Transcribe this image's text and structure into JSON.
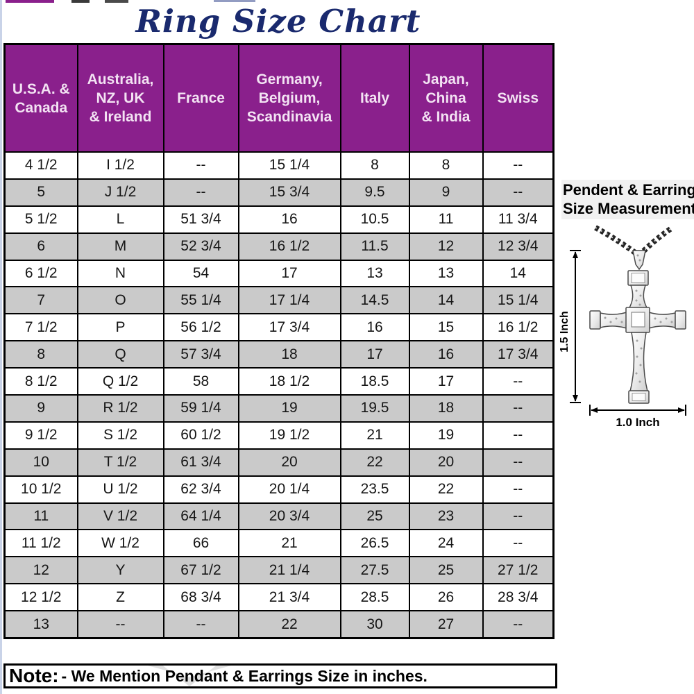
{
  "title": "Ring Size Chart",
  "table": {
    "headers": [
      {
        "lines": [
          "U.S.A. &",
          "Canada"
        ]
      },
      {
        "lines": [
          "Australia,",
          "NZ, UK",
          "& Ireland"
        ]
      },
      {
        "lines": [
          "France"
        ]
      },
      {
        "lines": [
          "Germany,",
          "Belgium,",
          "Scandinavia"
        ]
      },
      {
        "lines": [
          "Italy"
        ]
      },
      {
        "lines": [
          "Japan,",
          "China",
          "& India"
        ]
      },
      {
        "lines": [
          "Swiss"
        ]
      }
    ],
    "rows": [
      [
        "4 1/2",
        "I 1/2",
        "--",
        "15 1/4",
        "8",
        "8",
        "--"
      ],
      [
        "5",
        "J 1/2",
        "--",
        "15 3/4",
        "9.5",
        "9",
        "--"
      ],
      [
        "5 1/2",
        "L",
        "51 3/4",
        "16",
        "10.5",
        "11",
        "11 3/4"
      ],
      [
        "6",
        "M",
        "52 3/4",
        "16 1/2",
        "11.5",
        "12",
        "12 3/4"
      ],
      [
        "6 1/2",
        "N",
        "54",
        "17",
        "13",
        "13",
        "14"
      ],
      [
        "7",
        "O",
        "55 1/4",
        "17 1/4",
        "14.5",
        "14",
        "15 1/4"
      ],
      [
        "7 1/2",
        "P",
        "56 1/2",
        "17 3/4",
        "16",
        "15",
        "16 1/2"
      ],
      [
        "8",
        "Q",
        "57 3/4",
        "18",
        "17",
        "16",
        "17 3/4"
      ],
      [
        "8 1/2",
        "Q 1/2",
        "58",
        "18 1/2",
        "18.5",
        "17",
        "--"
      ],
      [
        "9",
        "R 1/2",
        "59 1/4",
        "19",
        "19.5",
        "18",
        "--"
      ],
      [
        "9 1/2",
        "S 1/2",
        "60 1/2",
        "19 1/2",
        "21",
        "19",
        "--"
      ],
      [
        "10",
        "T 1/2",
        "61 3/4",
        "20",
        "22",
        "20",
        "--"
      ],
      [
        "10 1/2",
        "U 1/2",
        "62 3/4",
        "20 1/4",
        "23.5",
        "22",
        "--"
      ],
      [
        "11",
        "V 1/2",
        "64 1/4",
        "20 3/4",
        "25",
        "23",
        "--"
      ],
      [
        "11 1/2",
        "W 1/2",
        "66",
        "21",
        "26.5",
        "24",
        "--"
      ],
      [
        "12",
        "Y",
        "67 1/2",
        "21 1/4",
        "27.5",
        "25",
        "27 1/2"
      ],
      [
        "12 1/2",
        "Z",
        "68 3/4",
        "21 3/4",
        "28.5",
        "26",
        "28 3/4"
      ],
      [
        "13",
        "--",
        "--",
        "22",
        "30",
        "27",
        "--"
      ]
    ]
  },
  "note": {
    "prefix": "Note:",
    "text": "- We Mention Pendant & Earrings Size in inches."
  },
  "side_panel": {
    "heading_line1": "Pendent & Earring",
    "heading_line2": "Size Measurement",
    "pendant_icon": "cross-pendant-necklace-icon",
    "height_label": "1.5 Inch",
    "width_label": "1.0 Inch"
  },
  "colors": {
    "header_bg": "#8A208C",
    "alt_row_bg": "#CACACA",
    "title_color": "#1A2A6E",
    "table_border": "#000000",
    "panel_heading_bg": "#F1F1F1"
  }
}
